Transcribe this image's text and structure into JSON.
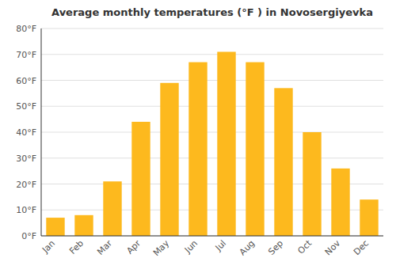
{
  "chart_data": {
    "type": "bar",
    "title": "Average monthly temperatures (°F ) in Novosergiyevka",
    "categories": [
      "Jan",
      "Feb",
      "Mar",
      "Apr",
      "May",
      "Jun",
      "Jul",
      "Aug",
      "Sep",
      "Oct",
      "Nov",
      "Dec"
    ],
    "values": [
      7,
      8,
      21,
      44,
      59,
      67,
      71,
      67,
      57,
      40,
      26,
      14
    ],
    "color": "#FDB91E",
    "ylim": [
      0,
      80
    ],
    "yticks": [
      {
        "value": 0,
        "label": "0°F"
      },
      {
        "value": 10,
        "label": "10°F"
      },
      {
        "value": 20,
        "label": "20°F"
      },
      {
        "value": 30,
        "label": "30°F"
      },
      {
        "value": 40,
        "label": "40°F"
      },
      {
        "value": 50,
        "label": "50°F"
      },
      {
        "value": 60,
        "label": "60°F"
      },
      {
        "value": 70,
        "label": "70°F"
      },
      {
        "value": 80,
        "label": "80°F"
      }
    ],
    "grid": true
  }
}
